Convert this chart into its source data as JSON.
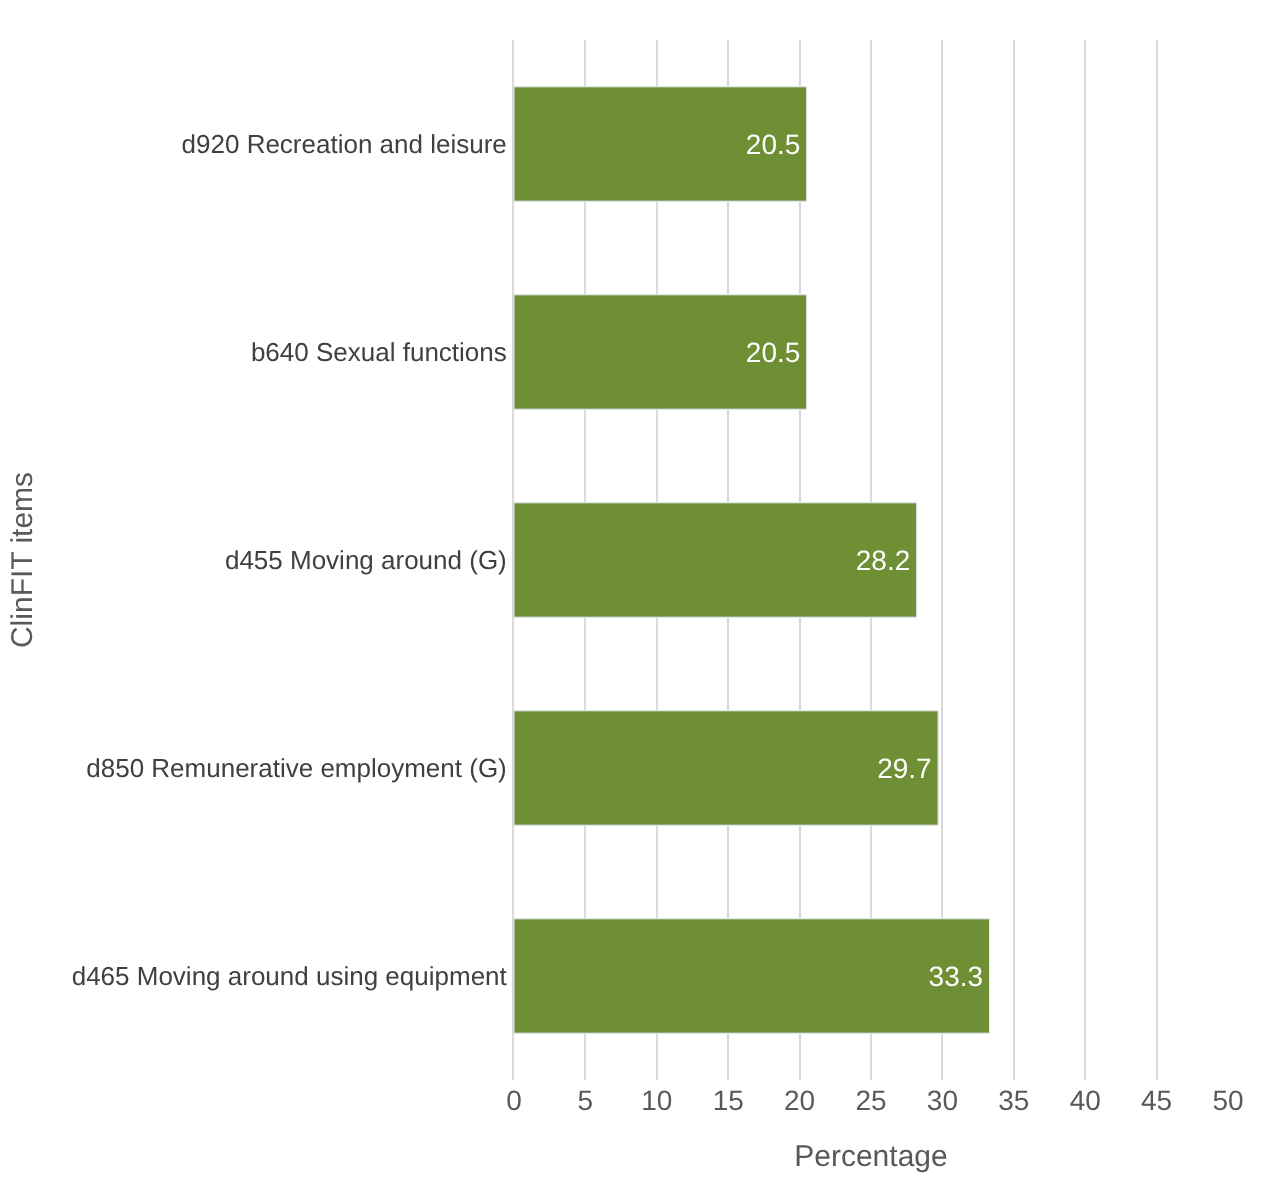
{
  "chart_data": {
    "type": "bar",
    "orientation": "horizontal",
    "xlabel": "Percentage",
    "ylabel": "ClinFIT items",
    "categories": [
      "d920 Recreation and leisure",
      "b640 Sexual functions",
      "d455 Moving around (G)",
      "d850 Remunerative employment (G)",
      "d465 Moving around using equipment"
    ],
    "values": [
      20.5,
      20.5,
      28.2,
      29.7,
      33.3
    ],
    "color": "#6f8f35",
    "xlim": [
      0,
      50
    ],
    "xticks": [
      0,
      5,
      10,
      15,
      20,
      25,
      30,
      35,
      40,
      45,
      50
    ],
    "grid": "x",
    "data_labels": true
  }
}
